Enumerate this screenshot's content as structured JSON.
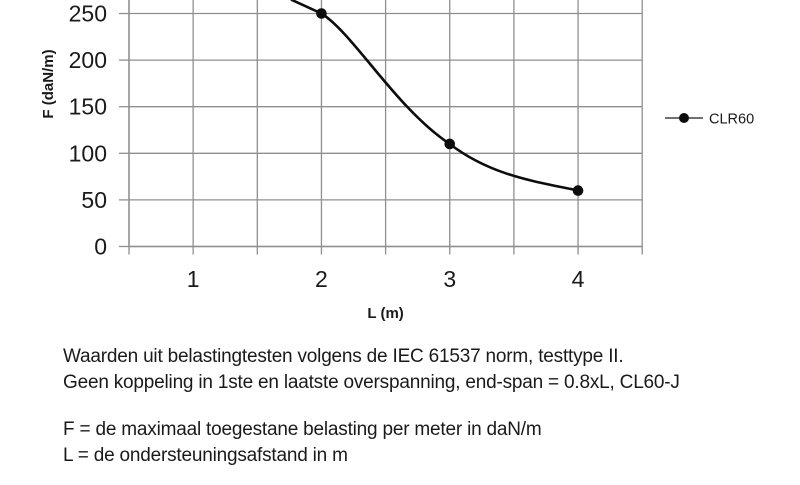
{
  "figure": {
    "background": "#ffffff"
  },
  "chart_data": {
    "type": "line",
    "title": "",
    "xlabel": "L (m)",
    "ylabel": "F (daN/m)",
    "x_ticks": [
      1,
      2,
      3,
      4
    ],
    "x_tick_labels": [
      "1",
      "2",
      "3",
      "4"
    ],
    "x_gridline_step": 0.5,
    "xlim": [
      0.5,
      4.5
    ],
    "y_ticks": [
      0,
      50,
      100,
      150,
      200,
      250
    ],
    "y_tick_labels": [
      "0",
      "50",
      "100",
      "150",
      "200",
      "250"
    ],
    "ylim_visible": [
      0,
      265
    ],
    "grid": true,
    "legend_position": "right",
    "series": [
      {
        "name": "CLR60",
        "points": [
          [
            2,
            250
          ],
          [
            3,
            110
          ],
          [
            4,
            60
          ]
        ],
        "entry_from_top_edge": [
          1.77,
          264.5
        ],
        "marker": "filled-circle",
        "color": "#0d0d0d"
      }
    ],
    "colors": {
      "grid": "#8f8f8f",
      "axis": "#8f8f8f",
      "text": "#1a1a1a",
      "legend_line": "#404040"
    }
  },
  "annotations": [
    "Waarden uit belastingtesten volgens de IEC 61537 norm, testtype II.",
    "Geen koppeling in 1ste en laatste overspanning, end-span = 0.8xL, CL60-J",
    "F = de maximaal toegestane belasting per meter in daN/m",
    "L = de ondersteuningsafstand in m"
  ]
}
